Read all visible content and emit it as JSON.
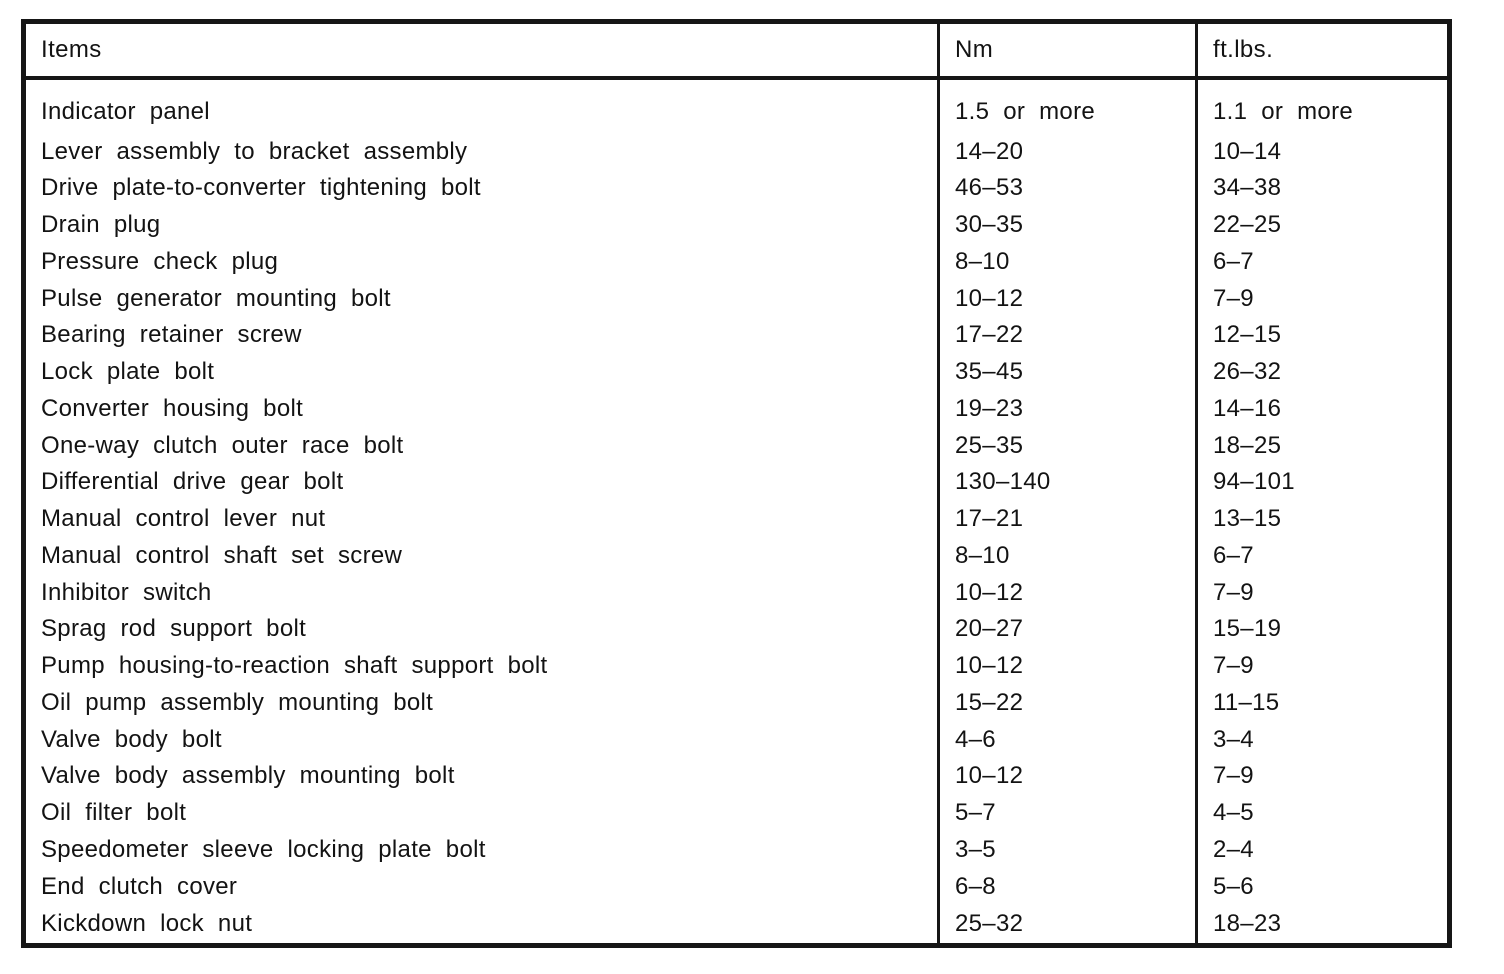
{
  "document": {
    "kind": "scanned torque specification table",
    "ink_color": "#161616",
    "paper_color": "#ffffff"
  },
  "table": {
    "columns": [
      "Items",
      "Nm",
      "ft.lbs."
    ],
    "rows": [
      {
        "item": "Indicator panel",
        "nm": "1.5 or more",
        "ftlbs": "1.1 or more"
      },
      {
        "item": "Lever assembly to bracket assembly",
        "nm": "14–20",
        "ftlbs": "10–14"
      },
      {
        "item": "Drive plate-to-converter tightening bolt",
        "nm": "46–53",
        "ftlbs": "34–38"
      },
      {
        "item": "Drain plug",
        "nm": "30–35",
        "ftlbs": "22–25"
      },
      {
        "item": "Pressure check plug",
        "nm": "8–10",
        "ftlbs": "6–7"
      },
      {
        "item": "Pulse generator mounting bolt",
        "nm": "10–12",
        "ftlbs": "7–9"
      },
      {
        "item": "Bearing retainer screw",
        "nm": "17–22",
        "ftlbs": "12–15"
      },
      {
        "item": "Lock plate bolt",
        "nm": "35–45",
        "ftlbs": "26–32"
      },
      {
        "item": "Converter housing bolt",
        "nm": "19–23",
        "ftlbs": "14–16"
      },
      {
        "item": "One-way clutch outer race bolt",
        "nm": "25–35",
        "ftlbs": "18–25"
      },
      {
        "item": "Differential drive gear bolt",
        "nm": "130–140",
        "ftlbs": "94–101"
      },
      {
        "item": "Manual control lever nut",
        "nm": "17–21",
        "ftlbs": "13–15"
      },
      {
        "item": "Manual control shaft set screw",
        "nm": "8–10",
        "ftlbs": "6–7"
      },
      {
        "item": "Inhibitor switch",
        "nm": "10–12",
        "ftlbs": "7–9"
      },
      {
        "item": "Sprag rod support bolt",
        "nm": "20–27",
        "ftlbs": "15–19"
      },
      {
        "item": "Pump housing-to-reaction shaft support bolt",
        "nm": "10–12",
        "ftlbs": "7–9"
      },
      {
        "item": "Oil pump assembly mounting bolt",
        "nm": "15–22",
        "ftlbs": "11–15"
      },
      {
        "item": "Valve body bolt",
        "nm": "4–6",
        "ftlbs": "3–4"
      },
      {
        "item": "Valve body assembly mounting bolt",
        "nm": "10–12",
        "ftlbs": "7–9"
      },
      {
        "item": "Oil filter bolt",
        "nm": "5–7",
        "ftlbs": "4–5"
      },
      {
        "item": "Speedometer sleeve locking plate bolt",
        "nm": "3–5",
        "ftlbs": "2–4"
      },
      {
        "item": "End clutch cover",
        "nm": "6–8",
        "ftlbs": "5–6"
      },
      {
        "item": "Kickdown lock nut",
        "nm": "25–32",
        "ftlbs": "18–23"
      }
    ]
  }
}
